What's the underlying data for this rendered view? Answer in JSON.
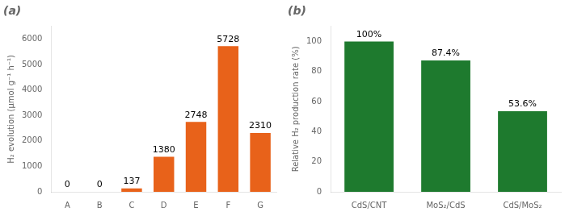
{
  "chart_data": [
    {
      "type": "bar",
      "title": "(a)",
      "categories": [
        "A",
        "B",
        "C",
        "D",
        "E",
        "F",
        "G"
      ],
      "values": [
        0,
        0,
        137,
        1380,
        2748,
        5728,
        2310
      ],
      "color": "#E8621A",
      "ylabel": "H₂ evolution (μmol g⁻¹ h⁻¹)",
      "ylim": [
        0,
        6500
      ],
      "yticks": [
        0,
        1000,
        2000,
        3000,
        4000,
        5000,
        6000
      ],
      "grid": false,
      "data_labels": true
    },
    {
      "type": "bar",
      "title": "(b)",
      "categories": [
        "CdS/CNT",
        "MoS₂/CdS",
        "CdS/MoS₂"
      ],
      "values": [
        100,
        87.4,
        53.6
      ],
      "value_labels": [
        "100%",
        "87.4%",
        "53.6%"
      ],
      "color": "#1E7A2E",
      "ylabel": "Relative H₂ production rate (%)",
      "ylim": [
        0,
        110
      ],
      "yticks": [
        0,
        20,
        40,
        60,
        80,
        100
      ],
      "grid": false,
      "data_labels": true
    }
  ]
}
